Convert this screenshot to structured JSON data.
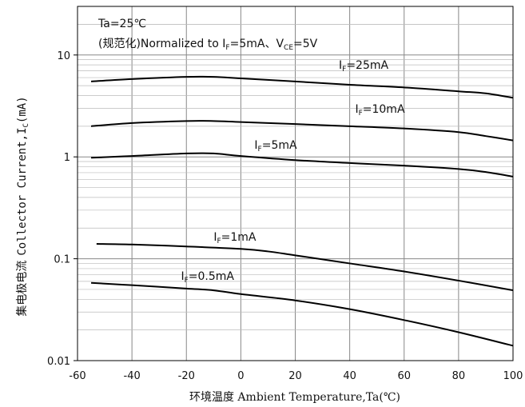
{
  "chart_data": {
    "type": "line",
    "y_scale": "log",
    "xlim": [
      -60,
      100
    ],
    "ylim": [
      0.01,
      30
    ],
    "x_ticks": [
      "-60",
      "-40",
      "-20",
      "0",
      "20",
      "40",
      "60",
      "80",
      "100"
    ],
    "y_ticks": [
      "0.01",
      "0.1",
      "1",
      "10"
    ],
    "xlabel": "环境温度 Ambient Temperature,Ta(℃)",
    "ylabel_cn": "集电极电流",
    "ylabel_en": "Collector Current,I",
    "ylabel_sub": "C",
    "ylabel_unit": "(mA)",
    "grid": true,
    "annotation": {
      "line1": "Ta=25℃",
      "line2_a": "(规范化)Normalized to I",
      "line2_sub1": "F",
      "line2_b": "=5mA、V",
      "line2_sub2": "CE",
      "line2_c": "=5V"
    },
    "series": [
      {
        "name": "I",
        "sub": "F",
        "suffix": "=25mA",
        "x": [
          -55,
          -40,
          -20,
          -10,
          0,
          20,
          40,
          60,
          80,
          90,
          100
        ],
        "y": [
          5.5,
          5.8,
          6.1,
          6.1,
          5.9,
          5.5,
          5.1,
          4.8,
          4.4,
          4.2,
          3.8
        ]
      },
      {
        "name": "I",
        "sub": "F",
        "suffix": "=10mA",
        "x": [
          -55,
          -40,
          -20,
          -10,
          0,
          20,
          40,
          60,
          80,
          90,
          100
        ],
        "y": [
          2.0,
          2.15,
          2.25,
          2.25,
          2.2,
          2.1,
          2.0,
          1.9,
          1.75,
          1.6,
          1.45
        ]
      },
      {
        "name": "I",
        "sub": "F",
        "suffix": "=5mA",
        "x": [
          -55,
          -40,
          -20,
          -10,
          0,
          20,
          40,
          60,
          80,
          90,
          100
        ],
        "y": [
          0.98,
          1.02,
          1.08,
          1.08,
          1.02,
          0.93,
          0.87,
          0.82,
          0.76,
          0.71,
          0.64
        ]
      },
      {
        "name": "I",
        "sub": "F",
        "suffix": "=1mA",
        "x": [
          -53,
          -40,
          -20,
          0,
          10,
          20,
          40,
          60,
          80,
          100
        ],
        "y": [
          0.14,
          0.138,
          0.132,
          0.125,
          0.118,
          0.108,
          0.09,
          0.075,
          0.061,
          0.049
        ]
      },
      {
        "name": "I",
        "sub": "F",
        "suffix": "=0.5mA",
        "x": [
          -55,
          -40,
          -20,
          -10,
          0,
          20,
          40,
          60,
          80,
          100
        ],
        "y": [
          0.058,
          0.055,
          0.051,
          0.049,
          0.045,
          0.039,
          0.032,
          0.025,
          0.019,
          0.014
        ]
      }
    ]
  }
}
